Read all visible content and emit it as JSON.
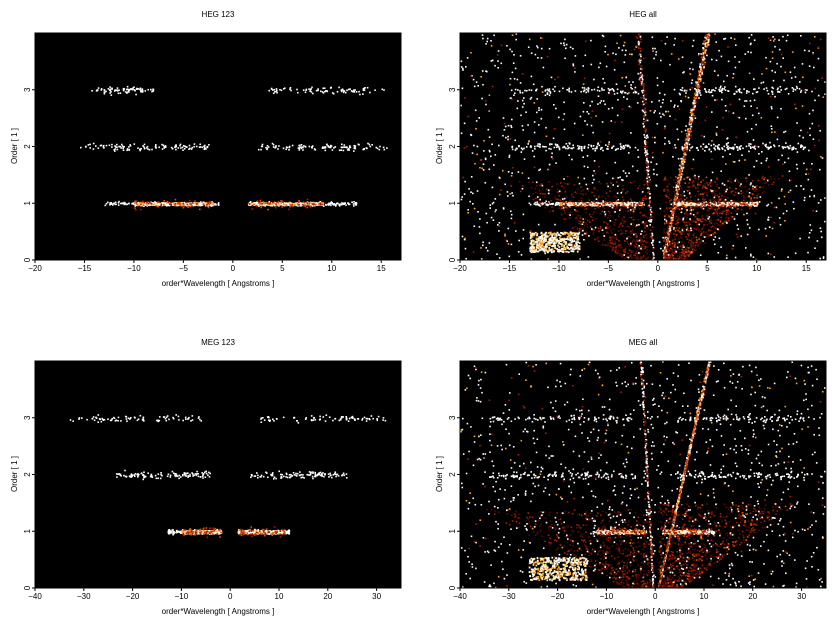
{
  "chart_data": [
    {
      "type": "heatmap",
      "title": "HEG 123",
      "xlabel": "order*Wavelength [ Angstroms ]",
      "ylabel": "Order [ 1 ]",
      "xlim": [
        -20,
        17
      ],
      "ylim": [
        0,
        4
      ],
      "xticks": [
        -20,
        -15,
        -10,
        -5,
        0,
        5,
        10,
        15
      ],
      "yticks": [
        0,
        1,
        2,
        3
      ],
      "background": "#000000",
      "colormap": [
        "#5a0a00",
        "#a01e00",
        "#e05000",
        "#ffa020",
        "#ffffff"
      ],
      "features": [
        {
          "kind": "band",
          "order": 1,
          "x_ranges": [
            [
              -13,
              -1.5
            ],
            [
              1.5,
              12.5
            ]
          ],
          "dense_x": [
            [
              -10,
              -2
            ],
            [
              1.5,
              9
            ]
          ],
          "intensity": "strong"
        },
        {
          "kind": "band",
          "order": 2,
          "x_ranges": [
            [
              -15.5,
              -2.5
            ],
            [
              2.5,
              15.5
            ]
          ],
          "intensity": "moderate"
        },
        {
          "kind": "band",
          "order": 3,
          "x_ranges": [
            [
              -14.5,
              -8
            ],
            [
              3.5,
              15.5
            ]
          ],
          "intensity": "weak"
        }
      ]
    },
    {
      "type": "heatmap",
      "title": "HEG all",
      "xlabel": "order*Wavelength [ Angstroms ]",
      "ylabel": "Order [ 1 ]",
      "xlim": [
        -20,
        17
      ],
      "ylim": [
        0,
        4
      ],
      "xticks": [
        -20,
        -15,
        -10,
        -5,
        0,
        5,
        10,
        15
      ],
      "yticks": [
        0,
        1,
        2,
        3
      ],
      "background": "#000000",
      "colormap": [
        "#5a0a00",
        "#a01e00",
        "#e05000",
        "#ffa020",
        "#ffffff"
      ],
      "features": [
        {
          "kind": "band",
          "order": 1,
          "x_ranges": [
            [
              -13,
              -1.5
            ],
            [
              1.5,
              10
            ]
          ],
          "dense_x": [
            [
              -10,
              -1.5
            ],
            [
              1.5,
              10
            ]
          ],
          "intensity": "strong"
        },
        {
          "kind": "band",
          "order": 2,
          "x_ranges": [
            [
              -15,
              -2
            ],
            [
              2,
              15
            ]
          ],
          "intensity": "moderate"
        },
        {
          "kind": "band",
          "order": 3,
          "x_ranges": [
            [
              -15,
              -2
            ],
            [
              2,
              15
            ]
          ],
          "intensity": "weak"
        },
        {
          "kind": "streak",
          "from": [
            0.5,
            0
          ],
          "to": [
            5,
            4
          ],
          "intensity": "strong"
        },
        {
          "kind": "streak",
          "from": [
            -0.5,
            0
          ],
          "to": [
            -2,
            4
          ],
          "intensity": "weak"
        },
        {
          "kind": "blob",
          "x_range": [
            -13,
            -8
          ],
          "y_range": [
            0.15,
            0.5
          ],
          "intensity": "strong"
        },
        {
          "kind": "background",
          "intensity": "sparse"
        }
      ]
    },
    {
      "type": "heatmap",
      "title": "MEG 123",
      "xlabel": "order*Wavelength [ Angstroms ]",
      "ylabel": "Order [ 1 ]",
      "xlim": [
        -40,
        35
      ],
      "ylim": [
        0,
        4
      ],
      "xticks": [
        -40,
        -30,
        -20,
        -10,
        0,
        10,
        20,
        30
      ],
      "yticks": [
        0,
        1,
        2,
        3
      ],
      "background": "#000000",
      "colormap": [
        "#5a0a00",
        "#a01e00",
        "#e05000",
        "#ffa020",
        "#ffffff"
      ],
      "features": [
        {
          "kind": "band",
          "order": 1,
          "x_ranges": [
            [
              -13,
              -2
            ],
            [
              1.5,
              12
            ]
          ],
          "dense_x": [
            [
              -10,
              -2
            ],
            [
              1.5,
              11
            ]
          ],
          "intensity": "strong"
        },
        {
          "kind": "band",
          "order": 2,
          "x_ranges": [
            [
              -24,
              -4
            ],
            [
              4,
              24
            ]
          ],
          "intensity": "moderate"
        },
        {
          "kind": "band",
          "order": 3,
          "x_ranges": [
            [
              -34,
              -6
            ],
            [
              6,
              32
            ]
          ],
          "intensity": "weak"
        }
      ]
    },
    {
      "type": "heatmap",
      "title": "MEG all",
      "xlabel": "order*Wavelength [ Angstroms ]",
      "ylabel": "Order [ 1 ]",
      "xlim": [
        -40,
        35
      ],
      "ylim": [
        0,
        4
      ],
      "xticks": [
        -40,
        -30,
        -20,
        -10,
        0,
        10,
        20,
        30
      ],
      "yticks": [
        0,
        1,
        2,
        3
      ],
      "background": "#000000",
      "colormap": [
        "#5a0a00",
        "#a01e00",
        "#e05000",
        "#ffa020",
        "#ffffff"
      ],
      "features": [
        {
          "kind": "band",
          "order": 1,
          "x_ranges": [
            [
              -13,
              -2
            ],
            [
              1.5,
              12
            ]
          ],
          "dense_x": [
            [
              -12,
              -2
            ],
            [
              1.5,
              11
            ]
          ],
          "intensity": "strong"
        },
        {
          "kind": "band",
          "order": 2,
          "x_ranges": [
            [
              -34,
              -4
            ],
            [
              4,
              32
            ]
          ],
          "intensity": "moderate"
        },
        {
          "kind": "band",
          "order": 3,
          "x_ranges": [
            [
              -34,
              -4
            ],
            [
              4,
              32
            ]
          ],
          "intensity": "weak"
        },
        {
          "kind": "streak",
          "from": [
            0.5,
            0
          ],
          "to": [
            11,
            4
          ],
          "intensity": "strong"
        },
        {
          "kind": "streak",
          "from": [
            -0.5,
            0
          ],
          "to": [
            -3,
            4
          ],
          "intensity": "weak"
        },
        {
          "kind": "blob",
          "x_range": [
            -26,
            -14
          ],
          "y_range": [
            0.15,
            0.55
          ],
          "intensity": "strong"
        },
        {
          "kind": "background",
          "intensity": "sparse"
        }
      ]
    }
  ]
}
